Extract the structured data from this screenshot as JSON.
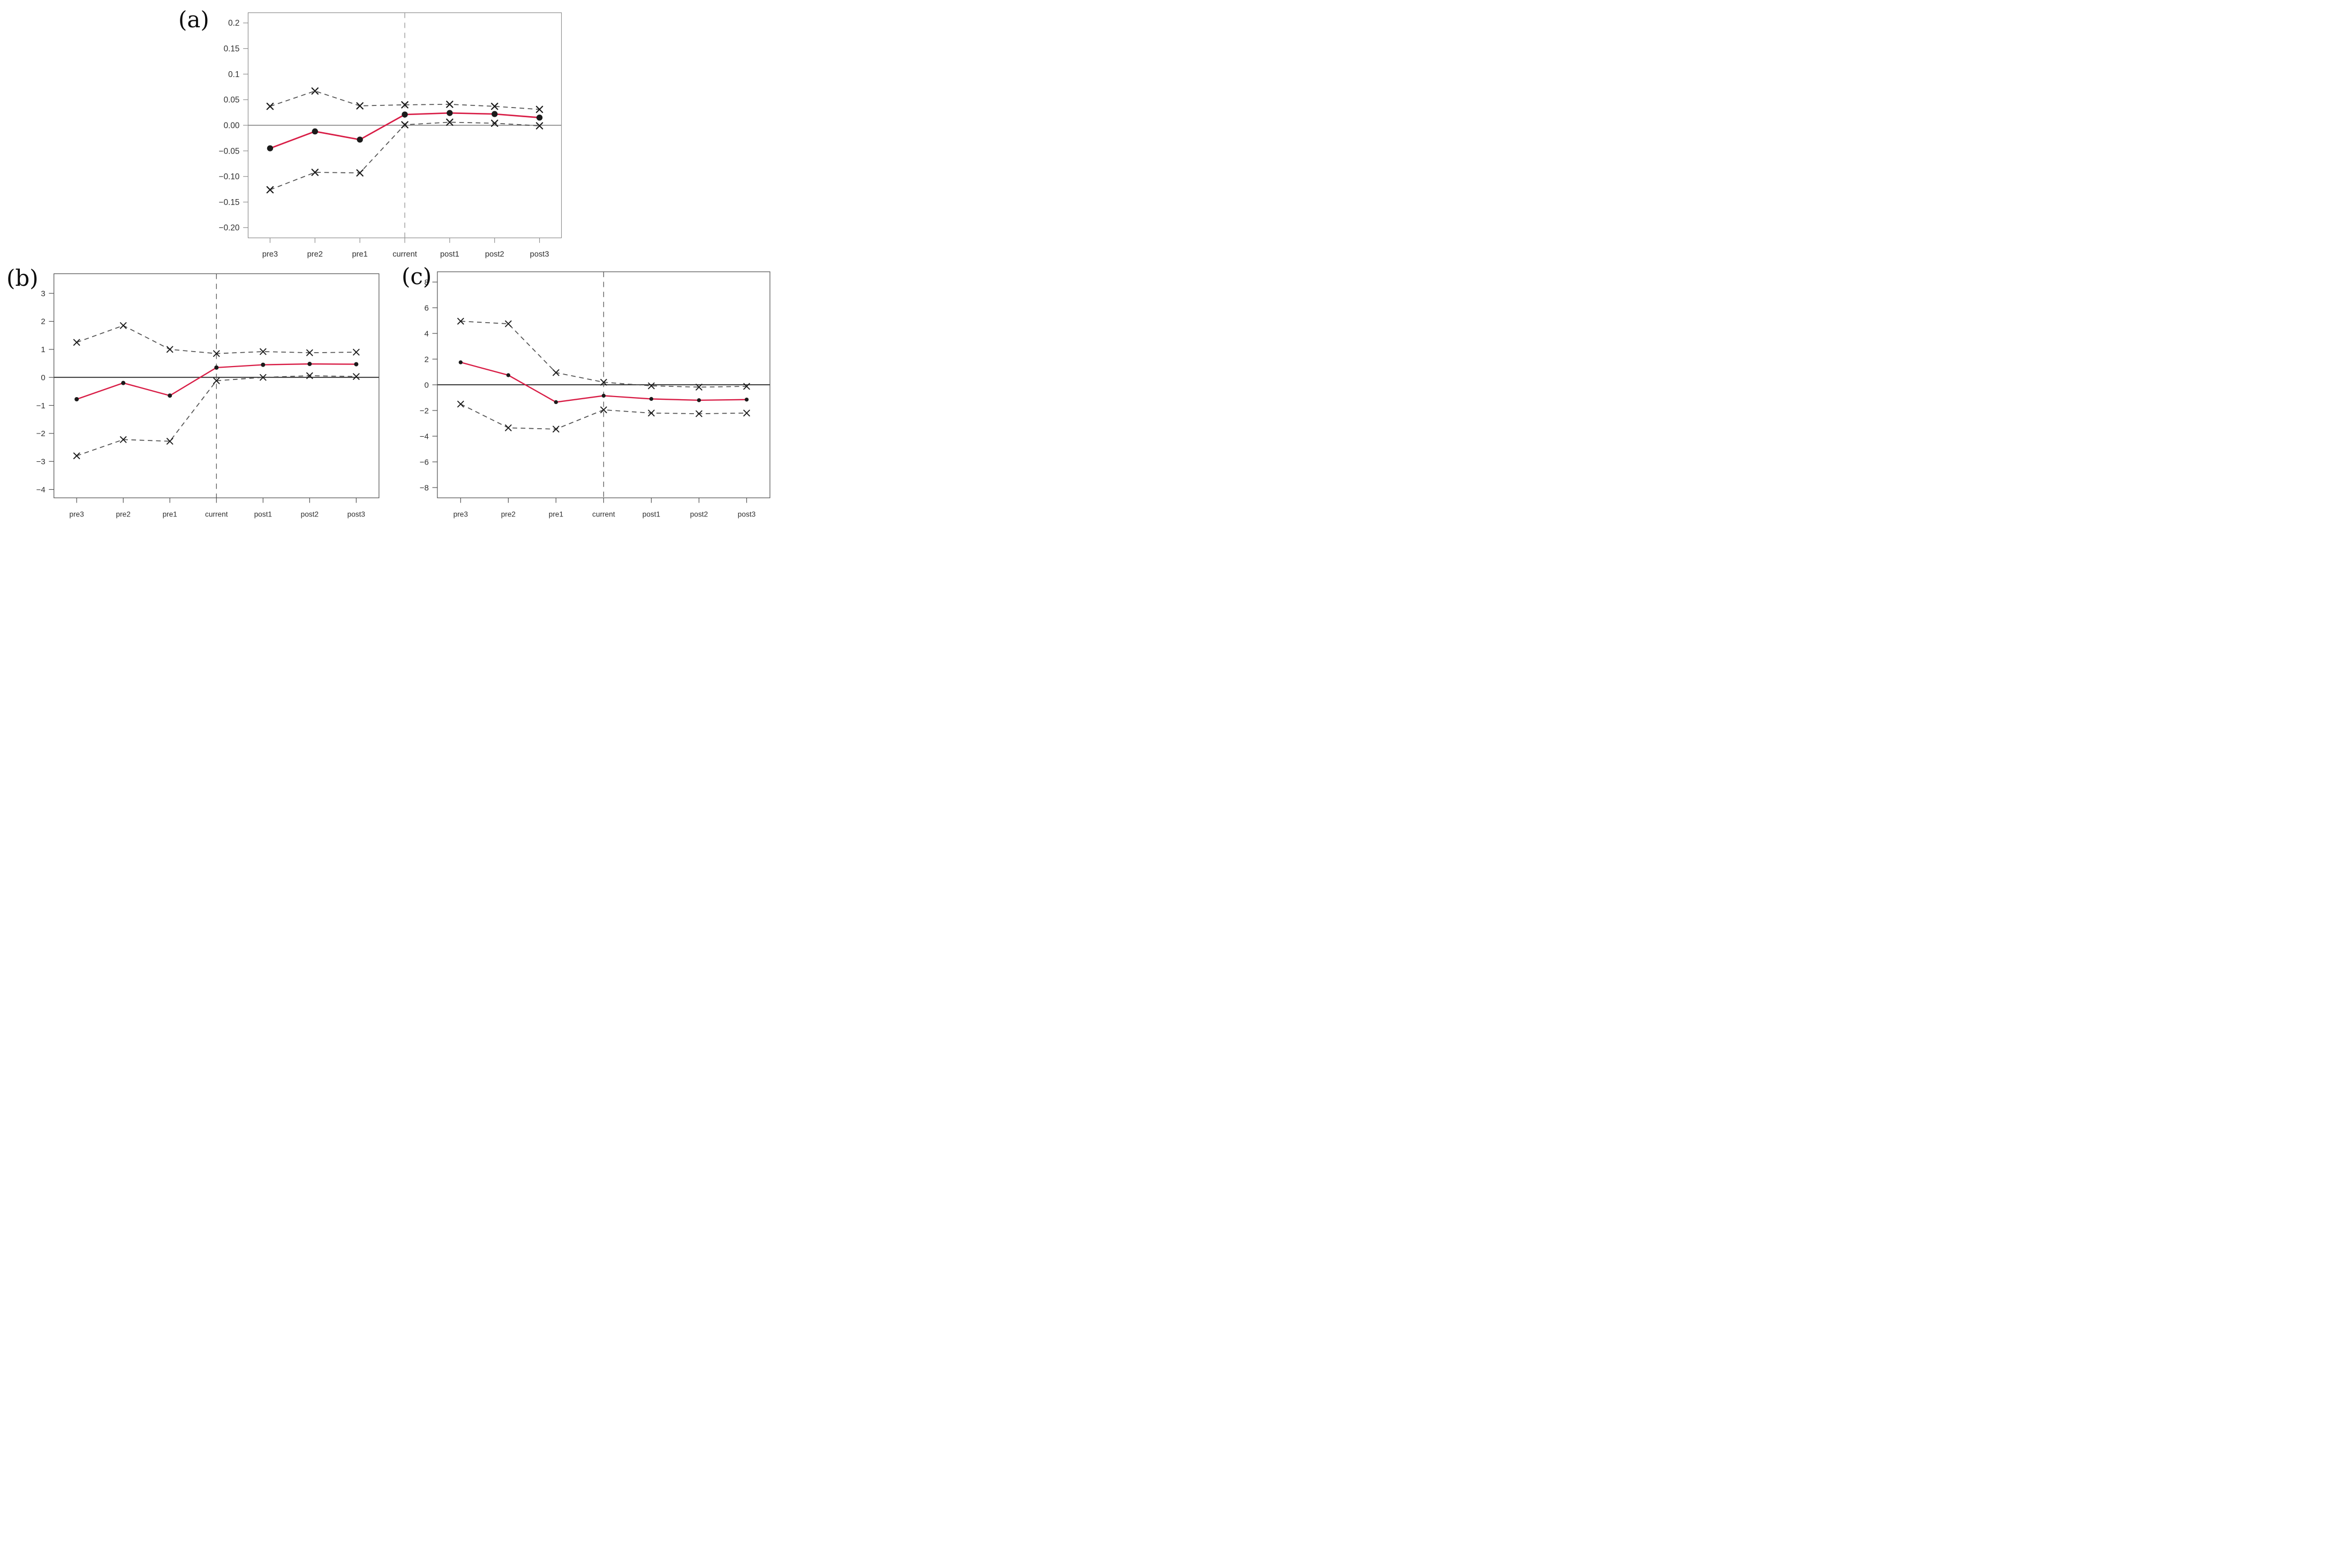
{
  "figure": {
    "background": "#ffffff",
    "panel_count": 3
  },
  "colors": {
    "estimate_line": "#d81c45",
    "estimate_marker": "#1b1b1b",
    "ci_line": "#4f4f4f",
    "ci_marker": "#1a1a1a",
    "frame": "#8f8f8f",
    "tick_text": "#2f2f2f",
    "panel_letter": "#0c0c0c"
  },
  "chart_data": [
    {
      "type": "line",
      "panel_label": "(a)",
      "categories": [
        "pre3",
        "pre2",
        "pre1",
        "current",
        "post1",
        "post2",
        "post3"
      ],
      "series": [
        {
          "name": "estimate",
          "line": "solid",
          "marker": "circle",
          "color": "#d81c45",
          "values": [
            -0.045,
            -0.012,
            -0.028,
            0.021,
            0.024,
            0.022,
            0.015
          ]
        },
        {
          "name": "upper_band",
          "line": "dashed",
          "marker": "x",
          "color": "#4f4f4f",
          "values": [
            0.037,
            0.067,
            0.038,
            0.04,
            0.041,
            0.037,
            0.031
          ]
        },
        {
          "name": "lower_band",
          "line": "dashed",
          "marker": "x",
          "color": "#4f4f4f",
          "values": [
            -0.126,
            -0.092,
            -0.093,
            0.001,
            0.006,
            0.004,
            -0.001
          ]
        }
      ],
      "ylim": [
        -0.22,
        0.22
      ],
      "yticks": [
        0.2,
        0.15,
        0.1,
        0.05,
        0,
        -0.05,
        -0.1,
        -0.15,
        -0.2
      ],
      "ytick_labels": [
        "0.2",
        "0.15",
        "0.1",
        "0.05",
        "0.00",
        "−0.05",
        "−0.10",
        "−0.15",
        "−0.20"
      ],
      "xlabel": "",
      "ylabel": "",
      "vline_at": "current",
      "zero_line": true,
      "grid": false,
      "legend": "none"
    },
    {
      "type": "line",
      "panel_label": "(b)",
      "categories": [
        "pre3",
        "pre2",
        "pre1",
        "current",
        "post1",
        "post2",
        "post3"
      ],
      "series": [
        {
          "name": "estimate",
          "line": "solid",
          "marker": "circle",
          "color": "#d81c45",
          "values": [
            -0.78,
            -0.2,
            -0.65,
            0.35,
            0.45,
            0.48,
            0.47
          ]
        },
        {
          "name": "upper_band",
          "line": "dashed",
          "marker": "x",
          "color": "#4f4f4f",
          "values": [
            1.25,
            1.85,
            1.0,
            0.85,
            0.92,
            0.88,
            0.9
          ]
        },
        {
          "name": "lower_band",
          "line": "dashed",
          "marker": "x",
          "color": "#4f4f4f",
          "values": [
            -2.8,
            -2.22,
            -2.28,
            -0.12,
            0.0,
            0.06,
            0.03
          ]
        }
      ],
      "ylim": [
        -4.3,
        3.7
      ],
      "yticks": [
        3,
        2,
        1,
        0,
        -1,
        -2,
        -3,
        -4
      ],
      "ytick_labels": [
        "3",
        "2",
        "1",
        "0",
        "−1",
        "−2",
        "−3",
        "−4"
      ],
      "xlabel": "",
      "ylabel": "",
      "vline_at": "current",
      "zero_line": true,
      "grid": false,
      "legend": "none"
    },
    {
      "type": "line",
      "panel_label": "(c)",
      "categories": [
        "pre3",
        "pre2",
        "pre1",
        "current",
        "post1",
        "post2",
        "post3"
      ],
      "series": [
        {
          "name": "estimate",
          "line": "solid",
          "marker": "circle",
          "color": "#d81c45",
          "values": [
            1.75,
            0.75,
            -1.35,
            -0.85,
            -1.1,
            -1.2,
            -1.15
          ]
        },
        {
          "name": "upper_band",
          "line": "dashed",
          "marker": "x",
          "color": "#4f4f4f",
          "values": [
            4.95,
            4.75,
            0.95,
            0.2,
            -0.08,
            -0.18,
            -0.12
          ]
        },
        {
          "name": "lower_band",
          "line": "dashed",
          "marker": "x",
          "color": "#4f4f4f",
          "values": [
            -1.5,
            -3.35,
            -3.45,
            -1.95,
            -2.2,
            -2.25,
            -2.2
          ]
        }
      ],
      "ylim": [
        -8.8,
        8.8
      ],
      "yticks": [
        8,
        6,
        4,
        2,
        0,
        -2,
        -4,
        -6,
        -8
      ],
      "ytick_labels": [
        "8",
        "6",
        "4",
        "2",
        "0",
        "−2",
        "−4",
        "−6",
        "−8"
      ],
      "xlabel": "",
      "ylabel": "",
      "vline_at": "current",
      "zero_line": true,
      "grid": false,
      "legend": "none"
    }
  ]
}
